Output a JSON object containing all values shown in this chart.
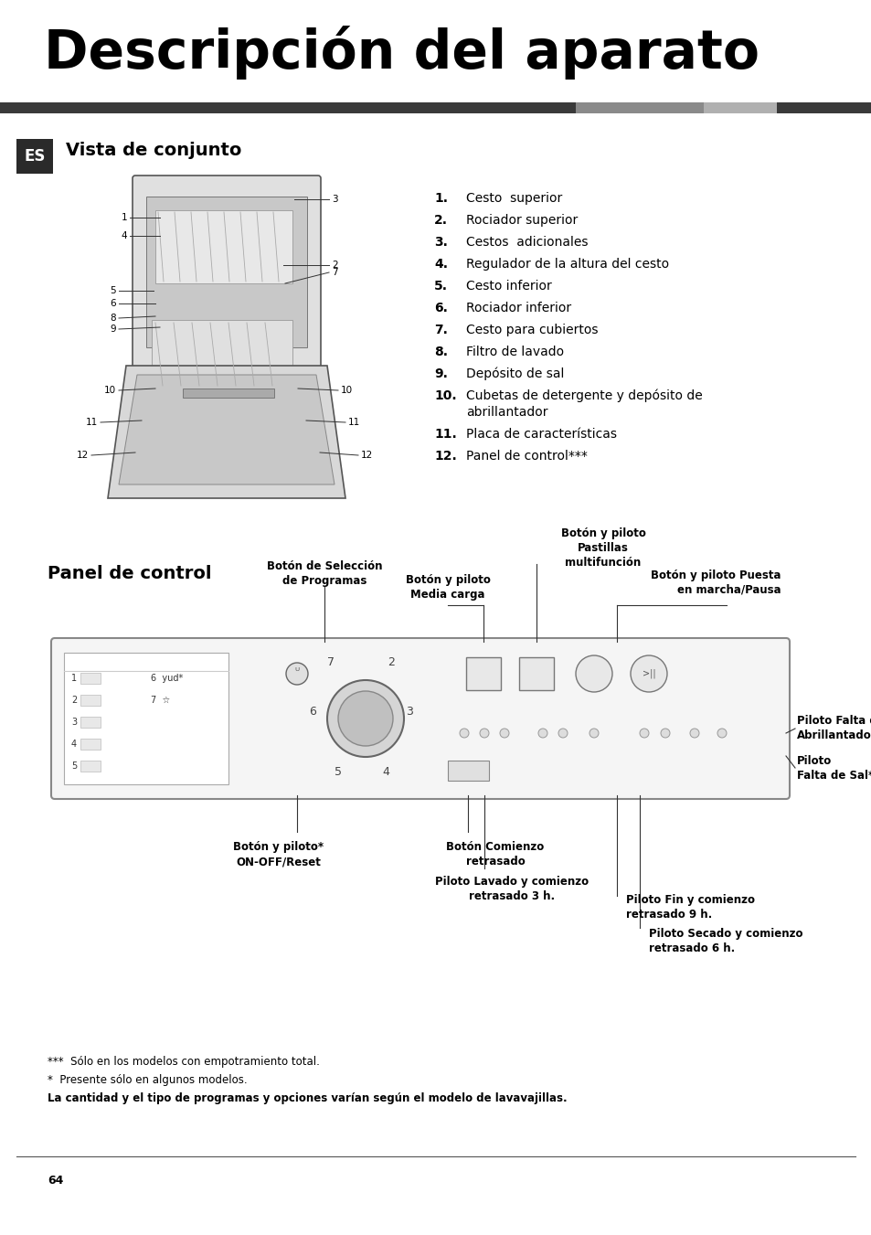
{
  "bg_color": "#ffffff",
  "title": "Descripción del aparato",
  "section1_title": "Vista de conjunto",
  "section2_title": "Panel de control",
  "es_label": "ES",
  "items": [
    [
      "1.",
      "Cesto  superior"
    ],
    [
      "2.",
      "Rociador superior"
    ],
    [
      "3.",
      "Cestos  adicionales"
    ],
    [
      "4.",
      "Regulador de la altura del cesto"
    ],
    [
      "5.",
      "Cesto inferior"
    ],
    [
      "6.",
      "Rociador inferior"
    ],
    [
      "7.",
      "Cesto para cubiertos"
    ],
    [
      "8.",
      "Filtro de lavado"
    ],
    [
      "9.",
      "Depósito de sal"
    ],
    [
      "10.",
      "Cubetas de detergente y depósito de\nabrillantador"
    ],
    [
      "11.",
      "Placa de características"
    ],
    [
      "12.",
      "Panel de control***"
    ]
  ],
  "panel_labels": {
    "boton_seleccion": "Botón de Selección\nde Programas",
    "boton_media": "Botón y piloto\nMedia carga",
    "boton_pastillas": "Botón y piloto\nPastillas\nmultifunción",
    "boton_puesta": "Botón y piloto Puesta\nen marcha/Pausa",
    "boton_onoff": "Botón y piloto*\nON-OFF/Reset",
    "boton_comienzo": "Botón Comienzo\nretrasado",
    "piloto_lavado": "Piloto Lavado y comienzo\nretrasado 3 h.",
    "piloto_falta_abri": "Piloto Falta de\nAbrillantador*",
    "piloto_falta_sal": "Piloto\nFalta de Sal*",
    "piloto_fin": "Piloto Fin y comienzo\nretrasado 9 h.",
    "piloto_secado": "Piloto Secado y comienzo\nretrasado 6 h."
  },
  "footnote1": "***  Sólo en los modelos con empotramiento total.",
  "footnote2": "*  Presente sólo en algunos modelos.",
  "footnote3": "La cantidad y el tipo de programas y opciones varían según el modelo de lavavajillas.",
  "page_number": "64",
  "dark_bar_color": "#3a3a3a",
  "mid_bar_color": "#8a8a8a",
  "light_bar_color": "#b0b0b0",
  "es_bg": "#2a2a2a",
  "es_fg": "#ffffff"
}
